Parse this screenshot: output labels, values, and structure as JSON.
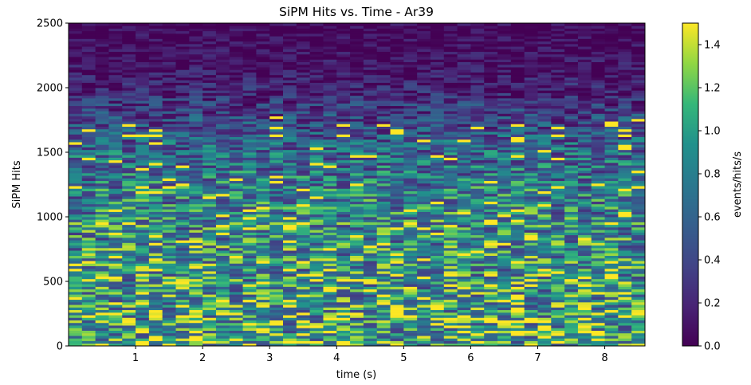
{
  "chart_data": {
    "type": "heatmap",
    "title": "SiPM Hits vs. Time - Ar39",
    "xlabel": "time (s)",
    "ylabel": "SiPM Hits",
    "colorbar_label": "events/hits/s",
    "colormap": "viridis",
    "xlim": [
      0.0,
      8.6
    ],
    "ylim": [
      0,
      2500
    ],
    "clim": [
      0.0,
      1.5
    ],
    "x_ticks": [
      1,
      2,
      3,
      4,
      5,
      6,
      7,
      8
    ],
    "y_ticks": [
      0,
      500,
      1000,
      1500,
      2000,
      2500
    ],
    "colorbar_ticks": [
      0.0,
      0.2,
      0.4,
      0.6,
      0.8,
      1.0,
      1.2,
      1.4
    ],
    "x_bin_width": 0.2,
    "y_bin_width": 20,
    "grid": false,
    "density_profile": {
      "description": "mean intensity per SiPM-hit bin, roughly constant along time",
      "y": [
        0,
        200,
        400,
        600,
        800,
        1000,
        1200,
        1400,
        1600,
        1800,
        2000,
        2200,
        2400,
        2500
      ],
      "mean_value": [
        0.95,
        0.95,
        0.93,
        0.9,
        0.86,
        0.82,
        0.76,
        0.68,
        0.55,
        0.38,
        0.18,
        0.08,
        0.04,
        0.03
      ]
    }
  }
}
